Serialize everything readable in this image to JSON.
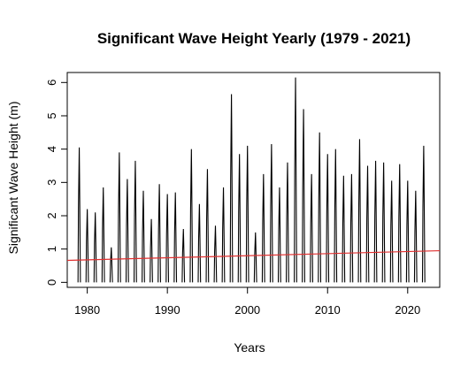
{
  "chart_data": {
    "type": "line",
    "title": "Significant Wave Height Yearly (1979 - 2021)",
    "xlabel": "Years",
    "ylabel": "Significant Wave Height (m)",
    "xlim": [
      1977.5,
      2024.0
    ],
    "ylim": [
      -0.15,
      6.3
    ],
    "xticks": [
      1980,
      1990,
      2000,
      2010,
      2020
    ],
    "yticks": [
      0,
      1,
      2,
      3,
      4,
      5,
      6
    ],
    "grid": false,
    "legend": "none",
    "series": [
      {
        "style": "spikes",
        "color": "#000000",
        "x": [
          1979,
          1980,
          1981,
          1982,
          1983,
          1984,
          1985,
          1986,
          1987,
          1988,
          1989,
          1990,
          1991,
          1992,
          1993,
          1994,
          1995,
          1996,
          1997,
          1998,
          1999,
          2000,
          2001,
          2002,
          2003,
          2004,
          2005,
          2006,
          2007,
          2008,
          2009,
          2010,
          2011,
          2012,
          2013,
          2014,
          2015,
          2016,
          2017,
          2018,
          2019,
          2020,
          2021,
          2022
        ],
        "y": [
          4.05,
          2.2,
          2.1,
          2.85,
          1.05,
          3.9,
          3.1,
          3.65,
          2.75,
          1.9,
          2.95,
          2.65,
          2.7,
          1.6,
          4.0,
          2.35,
          3.4,
          1.7,
          2.85,
          5.65,
          3.85,
          4.1,
          1.5,
          3.25,
          4.15,
          2.85,
          3.6,
          6.15,
          5.2,
          3.25,
          4.5,
          3.85,
          4.0,
          3.2,
          3.25,
          4.3,
          3.5,
          3.65,
          3.6,
          3.05,
          3.55,
          3.05,
          2.75,
          4.1
        ]
      },
      {
        "style": "trend",
        "color": "#e03030",
        "x": [
          1977.5,
          2024.0
        ],
        "y": [
          0.66,
          0.95
        ]
      }
    ]
  }
}
